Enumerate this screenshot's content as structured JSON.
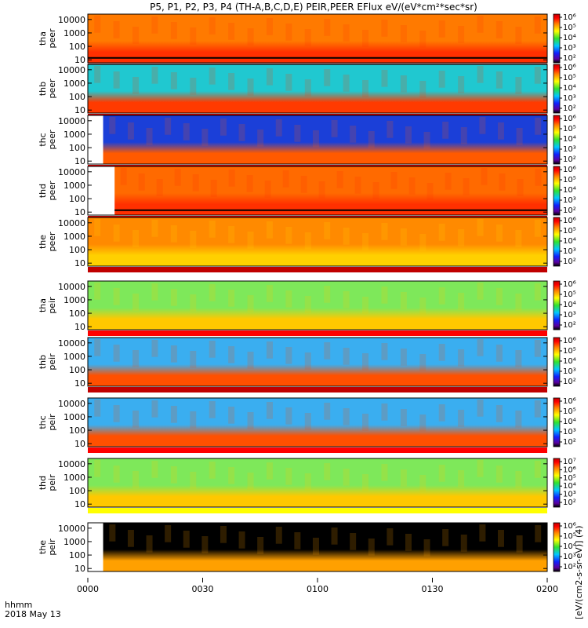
{
  "chart_data": {
    "type": "heatmap",
    "title": "P5, P1, P2, P3, P4 (TH-A,B,C,D,E) PEIR,PEER EFlux eV/(eV*cm²*sec*sr)",
    "colorbar_label": "[eV/(cm2-s-sr-eV)] (4)",
    "x_ticks": [
      "0000",
      "0030",
      "0100",
      "0130",
      "0200"
    ],
    "x_range": [
      "0000",
      "0200"
    ],
    "x_caption_line1": "hhmm",
    "x_caption_line2": "2018 May 13",
    "y_ticks": [
      "10",
      "100",
      "1000",
      "10000"
    ],
    "y_scale": "log",
    "y_range": [
      6,
      25000
    ],
    "colorbar_scale": "log",
    "panels": [
      {
        "probe": "tha",
        "species": "peer",
        "label_top": "tha",
        "label_bottom": "peer",
        "cb_ticks": [
          "10²",
          "10³",
          "10⁴",
          "10⁵",
          "10⁶"
        ],
        "data_start": "0000",
        "base": "#ff7a00",
        "band": "#ff3000",
        "line": true,
        "strip": "#c00000"
      },
      {
        "probe": "thb",
        "species": "peer",
        "label_top": "thb",
        "label_bottom": "peer",
        "cb_ticks": [
          "10²",
          "10³",
          "10⁴",
          "10⁵",
          "10⁶"
        ],
        "data_start": "0000",
        "base": "#20c8d0",
        "band": "#ff3a00",
        "line": false,
        "strip": "#c00000"
      },
      {
        "probe": "thc",
        "species": "peer",
        "label_top": "thc",
        "label_bottom": "peer",
        "cb_ticks": [
          "10²",
          "10³",
          "10⁴",
          "10⁵",
          "10⁶"
        ],
        "data_start": "0004",
        "base": "#1b3fd8",
        "band": "#ff5a00",
        "line": false,
        "strip": "#c00000"
      },
      {
        "probe": "thd",
        "species": "peer",
        "label_top": "thd",
        "label_bottom": "peer",
        "cb_ticks": [
          "10²",
          "10³",
          "10⁴",
          "10⁵",
          "10⁶"
        ],
        "data_start": "0007",
        "base": "#ff6a00",
        "band": "#ff3000",
        "line": true,
        "strip": "#c00000"
      },
      {
        "probe": "the",
        "species": "peer",
        "label_top": "the",
        "label_bottom": "peer",
        "cb_ticks": [
          "10²",
          "10³",
          "10⁴",
          "10⁵",
          "10⁶"
        ],
        "data_start": "0000",
        "base": "#ff8a00",
        "band": "#ffd000",
        "line": false,
        "strip": "#c00000"
      },
      {
        "probe": "tha",
        "species": "peir",
        "label_top": "tha",
        "label_bottom": "peir",
        "cb_ticks": [
          "10²",
          "10³",
          "10⁴",
          "10⁵",
          "10⁶"
        ],
        "data_start": "0000",
        "base": "#7ee85a",
        "band": "#ffc800",
        "line": false,
        "strip": "#ff0000"
      },
      {
        "probe": "thb",
        "species": "peir",
        "label_top": "thb",
        "label_bottom": "peir",
        "cb_ticks": [
          "10²",
          "10³",
          "10⁴",
          "10⁵",
          "10⁶"
        ],
        "data_start": "0000",
        "base": "#3aaef0",
        "band": "#ff5000",
        "line": false,
        "strip": "#c00000"
      },
      {
        "probe": "thc",
        "species": "peir",
        "label_top": "thc",
        "label_bottom": "peir",
        "cb_ticks": [
          "10²",
          "10³",
          "10⁴",
          "10⁵",
          "10⁶"
        ],
        "data_start": "0000",
        "base": "#3aaef0",
        "band": "#ff5000",
        "line": false,
        "strip": "#ff0000"
      },
      {
        "probe": "thd",
        "species": "peir",
        "label_top": "thd",
        "label_bottom": "peir",
        "cb_ticks": [
          "10²",
          "10³",
          "10⁴",
          "10⁵",
          "10⁶",
          "10⁷"
        ],
        "data_start": "0000",
        "base": "#7ee85a",
        "band": "#ffc800",
        "line": false,
        "strip": "#ffff00"
      },
      {
        "probe": "the",
        "species": "peir",
        "label_top": "the",
        "label_bottom": "peir",
        "cb_ticks": [
          "10²",
          "10³",
          "10⁴",
          "10⁵",
          "10⁶"
        ],
        "data_start": "0004",
        "base": "#000000",
        "band": "#ffa000",
        "line": false,
        "strip": "#ffffff"
      }
    ]
  }
}
